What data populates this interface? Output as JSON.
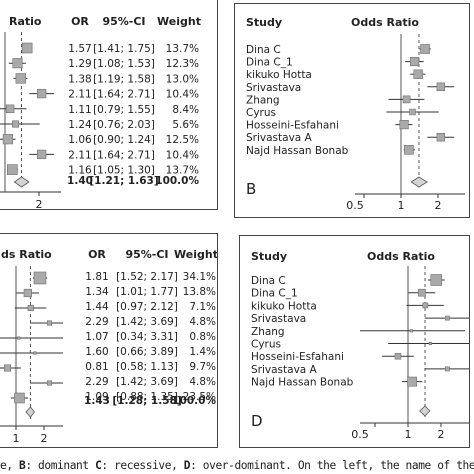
{
  "panel_a": {
    "headers": {
      "title_fragment": "Ratio",
      "or": "OR",
      "ci": "95%-CI",
      "weight": "Weight"
    },
    "rows": [
      {
        "or": "1.57",
        "ci": "[1.41; 1.75]",
        "weight": "13.7%",
        "est": 1.57,
        "lo": 1.41,
        "hi": 1.75,
        "w": 13.7
      },
      {
        "or": "1.29",
        "ci": "[1.08; 1.53]",
        "weight": "12.3%",
        "est": 1.29,
        "lo": 1.08,
        "hi": 1.53,
        "w": 12.3
      },
      {
        "or": "1.38",
        "ci": "[1.19; 1.58]",
        "weight": "13.0%",
        "est": 1.38,
        "lo": 1.19,
        "hi": 1.58,
        "w": 13.0
      },
      {
        "or": "2.11",
        "ci": "[1.64; 2.71]",
        "weight": "10.4%",
        "est": 2.11,
        "lo": 1.64,
        "hi": 2.71,
        "w": 10.4
      },
      {
        "or": "1.11",
        "ci": "[0.79; 1.55]",
        "weight": "8.4%",
        "est": 1.11,
        "lo": 0.79,
        "hi": 1.55,
        "w": 8.4
      },
      {
        "or": "1.24",
        "ci": "[0.76; 2.03]",
        "weight": "5.6%",
        "est": 1.24,
        "lo": 0.76,
        "hi": 2.03,
        "w": 5.6
      },
      {
        "or": "1.06",
        "ci": "[0.90; 1.24]",
        "weight": "12.5%",
        "est": 1.06,
        "lo": 0.9,
        "hi": 1.24,
        "w": 12.5
      },
      {
        "or": "2.11",
        "ci": "[1.64; 2.71]",
        "weight": "10.4%",
        "est": 2.11,
        "lo": 1.64,
        "hi": 2.71,
        "w": 10.4
      },
      {
        "or": "1.16",
        "ci": "[1.05; 1.30]",
        "weight": "13.7%",
        "est": 1.16,
        "lo": 1.05,
        "hi": 1.3,
        "w": 13.7
      }
    ],
    "summary": {
      "or": "1.40",
      "ci": "[1.21; 1.63]",
      "weight": "100.0%",
      "est": 1.4,
      "lo": 1.21,
      "hi": 1.63
    },
    "tick_labels": [
      "2"
    ]
  },
  "panel_b": {
    "headers": {
      "study": "Study",
      "odds_ratio": "Odds Ratio"
    },
    "studies": [
      "Dina C",
      "Dina C_1",
      "kikuko Hotta",
      "Srivastava",
      "Zhang",
      "Cyrus",
      "Hosseini-Esfahani",
      "Srivastava A",
      "Najd Hassan Bonab"
    ],
    "rows": [
      {
        "est": 1.57,
        "lo": 1.41,
        "hi": 1.75,
        "w": 13.7
      },
      {
        "est": 1.29,
        "lo": 1.08,
        "hi": 1.53,
        "w": 12.3
      },
      {
        "est": 1.38,
        "lo": 1.19,
        "hi": 1.58,
        "w": 13.0
      },
      {
        "est": 2.11,
        "lo": 1.64,
        "hi": 2.71,
        "w": 10.4
      },
      {
        "est": 1.11,
        "lo": 0.79,
        "hi": 1.55,
        "w": 8.4
      },
      {
        "est": 1.24,
        "lo": 0.76,
        "hi": 2.03,
        "w": 5.6
      },
      {
        "est": 1.06,
        "lo": 0.9,
        "hi": 1.24,
        "w": 12.5
      },
      {
        "est": 2.11,
        "lo": 1.64,
        "hi": 2.71,
        "w": 10.4
      },
      {
        "est": 1.16,
        "lo": 1.05,
        "hi": 1.3,
        "w": 13.7
      }
    ],
    "summary": {
      "est": 1.4,
      "lo": 1.21,
      "hi": 1.63
    },
    "letter": "B",
    "tick_labels": [
      "0.5",
      "1",
      "2"
    ]
  },
  "panel_c": {
    "headers": {
      "title_fragment": "ds Ratio",
      "or": "OR",
      "ci": "95%-CI",
      "weight": "Weight"
    },
    "rows": [
      {
        "or": "1.81",
        "ci": "[1.52; 2.17]",
        "weight": "34.1%",
        "est": 1.81,
        "lo": 1.52,
        "hi": 2.17,
        "w": 34.1
      },
      {
        "or": "1.34",
        "ci": "[1.01; 1.77]",
        "weight": "13.8%",
        "est": 1.34,
        "lo": 1.01,
        "hi": 1.77,
        "w": 13.8
      },
      {
        "or": "1.44",
        "ci": "[0.97; 2.12]",
        "weight": "7.1%",
        "est": 1.44,
        "lo": 0.97,
        "hi": 2.12,
        "w": 7.1
      },
      {
        "or": "2.29",
        "ci": "[1.42; 3.69]",
        "weight": "4.8%",
        "est": 2.29,
        "lo": 1.42,
        "hi": 3.69,
        "w": 4.8
      },
      {
        "or": "1.07",
        "ci": "[0.34; 3.31]",
        "weight": "0.8%",
        "est": 1.07,
        "lo": 0.34,
        "hi": 3.31,
        "w": 0.8
      },
      {
        "or": "1.60",
        "ci": "[0.66; 3.89]",
        "weight": "1.4%",
        "est": 1.6,
        "lo": 0.66,
        "hi": 3.89,
        "w": 1.4
      },
      {
        "or": "0.81",
        "ci": "[0.58; 1.13]",
        "weight": "9.7%",
        "est": 0.81,
        "lo": 0.58,
        "hi": 1.13,
        "w": 9.7
      },
      {
        "or": "2.29",
        "ci": "[1.42; 3.69]",
        "weight": "4.8%",
        "est": 2.29,
        "lo": 1.42,
        "hi": 3.69,
        "w": 4.8
      },
      {
        "or": "1.09",
        "ci": "[0.88; 1.35]",
        "weight": "23.5%",
        "est": 1.09,
        "lo": 0.88,
        "hi": 1.35,
        "w": 23.5
      }
    ],
    "summary": {
      "or": "1.43",
      "ci": "[1.28; 1.58]",
      "weight": "100.0%",
      "est": 1.43,
      "lo": 1.28,
      "hi": 1.58
    },
    "tick_labels": [
      "1",
      "2"
    ]
  },
  "panel_d": {
    "headers": {
      "study": "Study",
      "odds_ratio": "Odds Ratio"
    },
    "studies": [
      "Dina C",
      "Dina C_1",
      "kikuko Hotta",
      "Srivastava",
      "Zhang",
      "Cyrus",
      "Hosseini-Esfahani",
      "Srivastava A",
      "Najd Hassan Bonab"
    ],
    "rows": [
      {
        "est": 1.81,
        "lo": 1.52,
        "hi": 2.17,
        "w": 34.1
      },
      {
        "est": 1.34,
        "lo": 1.01,
        "hi": 1.77,
        "w": 13.8
      },
      {
        "est": 1.44,
        "lo": 0.97,
        "hi": 2.12,
        "w": 7.1
      },
      {
        "est": 2.29,
        "lo": 1.42,
        "hi": 3.69,
        "w": 4.8
      },
      {
        "est": 1.07,
        "lo": 0.34,
        "hi": 3.31,
        "w": 0.8
      },
      {
        "est": 1.6,
        "lo": 0.66,
        "hi": 3.89,
        "w": 1.4
      },
      {
        "est": 0.81,
        "lo": 0.58,
        "hi": 1.13,
        "w": 9.7
      },
      {
        "est": 2.29,
        "lo": 1.42,
        "hi": 3.69,
        "w": 4.8
      },
      {
        "est": 1.09,
        "lo": 0.88,
        "hi": 1.35,
        "w": 23.5
      }
    ],
    "summary": {
      "est": 1.43,
      "lo": 1.28,
      "hi": 1.58
    },
    "letter": "D",
    "tick_labels": [
      "0.5",
      "1",
      "2"
    ]
  },
  "caption": {
    "prefix": "e, ",
    "b_letter": "B",
    "b_text": ": dominant ",
    "c_letter": "C",
    "c_text": ": recessive, ",
    "d_letter": "D",
    "d_text": ": over-dominant. On the left, the name of the first author of the s"
  },
  "colors": {
    "box_fill": "#a9a9a9",
    "box_stroke": "#6e6e6e",
    "line": "#333333",
    "null_line": "#555555"
  }
}
